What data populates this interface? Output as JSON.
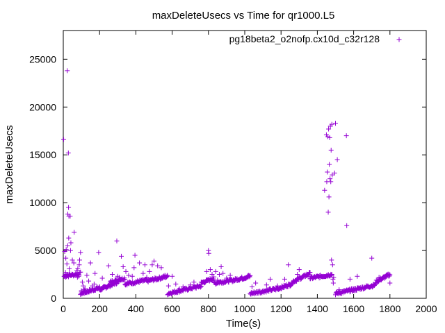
{
  "chart_data": {
    "type": "scatter",
    "title": "maxDeleteUsecs vs Time for qr1000.L5",
    "xlabel": "Time(s)",
    "ylabel": "maxDeleteUsecs",
    "xlim": [
      0,
      2000
    ],
    "ylim": [
      0,
      28000
    ],
    "x_ticks": [
      "0",
      "200",
      "400",
      "600",
      "800",
      "1000",
      "1200",
      "1400",
      "1600",
      "1800",
      "2000"
    ],
    "y_ticks": [
      "0",
      "5000",
      "10000",
      "15000",
      "20000",
      "25000"
    ],
    "grid": false,
    "legend_position": "top-right",
    "series": [
      {
        "name": "pg18beta2_o2nofp.cx10d_c32r128",
        "color": "#9400d3",
        "marker": "+",
        "points": [
          [
            2,
            16600
          ],
          [
            5,
            2300
          ],
          [
            8,
            4900
          ],
          [
            10,
            2500
          ],
          [
            12,
            2700
          ],
          [
            14,
            4200
          ],
          [
            16,
            5100
          ],
          [
            18,
            2400
          ],
          [
            20,
            3600
          ],
          [
            22,
            23800
          ],
          [
            24,
            5500
          ],
          [
            25,
            8800
          ],
          [
            26,
            2500
          ],
          [
            28,
            15200
          ],
          [
            29,
            9500
          ],
          [
            30,
            6300
          ],
          [
            31,
            8600
          ],
          [
            33,
            3100
          ],
          [
            35,
            2600
          ],
          [
            38,
            8600
          ],
          [
            40,
            5000
          ],
          [
            42,
            5800
          ],
          [
            45,
            2400
          ],
          [
            48,
            2500
          ],
          [
            50,
            4000
          ],
          [
            55,
            2400
          ],
          [
            58,
            3700
          ],
          [
            60,
            6900
          ],
          [
            65,
            2400
          ],
          [
            70,
            2500
          ],
          [
            75,
            2900
          ],
          [
            78,
            2200
          ],
          [
            80,
            3100
          ],
          [
            85,
            2300
          ],
          [
            88,
            3500
          ],
          [
            90,
            4000
          ],
          [
            95,
            4800
          ],
          [
            100,
            800
          ],
          [
            105,
            1700
          ],
          [
            110,
            1300
          ],
          [
            115,
            900
          ],
          [
            120,
            1000
          ],
          [
            125,
            600
          ],
          [
            130,
            2400
          ],
          [
            140,
            1800
          ],
          [
            150,
            3700
          ],
          [
            160,
            1300
          ],
          [
            170,
            1500
          ],
          [
            175,
            2600
          ],
          [
            185,
            1200
          ],
          [
            195,
            4800
          ],
          [
            200,
            1200
          ],
          [
            215,
            2100
          ],
          [
            250,
            3400
          ],
          [
            260,
            1600
          ],
          [
            270,
            2500
          ],
          [
            285,
            1900
          ],
          [
            295,
            6000
          ],
          [
            300,
            2300
          ],
          [
            310,
            2200
          ],
          [
            320,
            4400
          ],
          [
            330,
            3300
          ],
          [
            345,
            2800
          ],
          [
            360,
            2400
          ],
          [
            380,
            2300
          ],
          [
            390,
            3200
          ],
          [
            395,
            4500
          ],
          [
            420,
            3700
          ],
          [
            440,
            2600
          ],
          [
            450,
            3500
          ],
          [
            460,
            2200
          ],
          [
            475,
            2800
          ],
          [
            490,
            3500
          ],
          [
            500,
            3900
          ],
          [
            520,
            3400
          ],
          [
            540,
            3200
          ],
          [
            560,
            2400
          ],
          [
            580,
            1300
          ],
          [
            600,
            2300
          ],
          [
            620,
            1500
          ],
          [
            640,
            1000
          ],
          [
            660,
            1200
          ],
          [
            700,
            1400
          ],
          [
            720,
            1700
          ],
          [
            760,
            1500
          ],
          [
            790,
            2800
          ],
          [
            800,
            5000
          ],
          [
            802,
            4700
          ],
          [
            810,
            3000
          ],
          [
            820,
            2500
          ],
          [
            840,
            2800
          ],
          [
            850,
            1900
          ],
          [
            860,
            2500
          ],
          [
            870,
            3300
          ],
          [
            880,
            2600
          ],
          [
            900,
            2100
          ],
          [
            920,
            2400
          ],
          [
            1020,
            2400
          ],
          [
            1040,
            1200
          ],
          [
            1060,
            1600
          ],
          [
            1120,
            1400
          ],
          [
            1140,
            2000
          ],
          [
            1180,
            1300
          ],
          [
            1220,
            2000
          ],
          [
            1240,
            3500
          ],
          [
            1290,
            2500
          ],
          [
            1300,
            3000
          ],
          [
            1360,
            2700
          ],
          [
            1440,
            11300
          ],
          [
            1450,
            17100
          ],
          [
            1452,
            12200
          ],
          [
            1455,
            13200
          ],
          [
            1458,
            16900
          ],
          [
            1460,
            9000
          ],
          [
            1462,
            17700
          ],
          [
            1464,
            10600
          ],
          [
            1466,
            14000
          ],
          [
            1468,
            16800
          ],
          [
            1470,
            12500
          ],
          [
            1472,
            18000
          ],
          [
            1474,
            12200
          ],
          [
            1476,
            15500
          ],
          [
            1478,
            4000
          ],
          [
            1480,
            18200
          ],
          [
            1482,
            12900
          ],
          [
            1484,
            3500
          ],
          [
            1486,
            2000
          ],
          [
            1488,
            1600
          ],
          [
            1490,
            2200
          ],
          [
            1495,
            13100
          ],
          [
            1500,
            18300
          ],
          [
            1510,
            14500
          ],
          [
            1520,
            900
          ],
          [
            1560,
            17000
          ],
          [
            1562,
            7600
          ],
          [
            1580,
            2000
          ],
          [
            1620,
            2300
          ],
          [
            1700,
            4200
          ],
          [
            1740,
            2200
          ],
          [
            1800,
            1600
          ],
          [
            1850,
            27600
          ]
        ],
        "bands": [
          {
            "x0": 5,
            "x1": 95,
            "y0": 2300,
            "y1": 2600,
            "n": 24
          },
          {
            "x0": 95,
            "x1": 200,
            "y0": 500,
            "y1": 1100,
            "n": 42
          },
          {
            "x0": 200,
            "x1": 300,
            "y0": 900,
            "y1": 1700,
            "n": 42
          },
          {
            "x0": 260,
            "x1": 340,
            "y0": 1700,
            "y1": 2100,
            "n": 26
          },
          {
            "x0": 340,
            "x1": 460,
            "y0": 1500,
            "y1": 1900,
            "n": 44
          },
          {
            "x0": 460,
            "x1": 575,
            "y0": 1800,
            "y1": 2300,
            "n": 44
          },
          {
            "x0": 575,
            "x1": 760,
            "y0": 500,
            "y1": 1300,
            "n": 62
          },
          {
            "x0": 760,
            "x1": 830,
            "y0": 1600,
            "y1": 2100,
            "n": 24
          },
          {
            "x0": 830,
            "x1": 940,
            "y0": 1600,
            "y1": 1900,
            "n": 40
          },
          {
            "x0": 940,
            "x1": 1030,
            "y0": 1900,
            "y1": 2300,
            "n": 36
          },
          {
            "x0": 1030,
            "x1": 1180,
            "y0": 500,
            "y1": 1000,
            "n": 52
          },
          {
            "x0": 1180,
            "x1": 1260,
            "y0": 1000,
            "y1": 1500,
            "n": 30
          },
          {
            "x0": 1260,
            "x1": 1360,
            "y0": 1700,
            "y1": 2600,
            "n": 40
          },
          {
            "x0": 1360,
            "x1": 1480,
            "y0": 2100,
            "y1": 2500,
            "n": 44
          },
          {
            "x0": 1500,
            "x1": 1600,
            "y0": 500,
            "y1": 900,
            "n": 40
          },
          {
            "x0": 1600,
            "x1": 1720,
            "y0": 900,
            "y1": 1400,
            "n": 44
          },
          {
            "x0": 1720,
            "x1": 1800,
            "y0": 1700,
            "y1": 2500,
            "n": 32
          }
        ]
      }
    ]
  }
}
